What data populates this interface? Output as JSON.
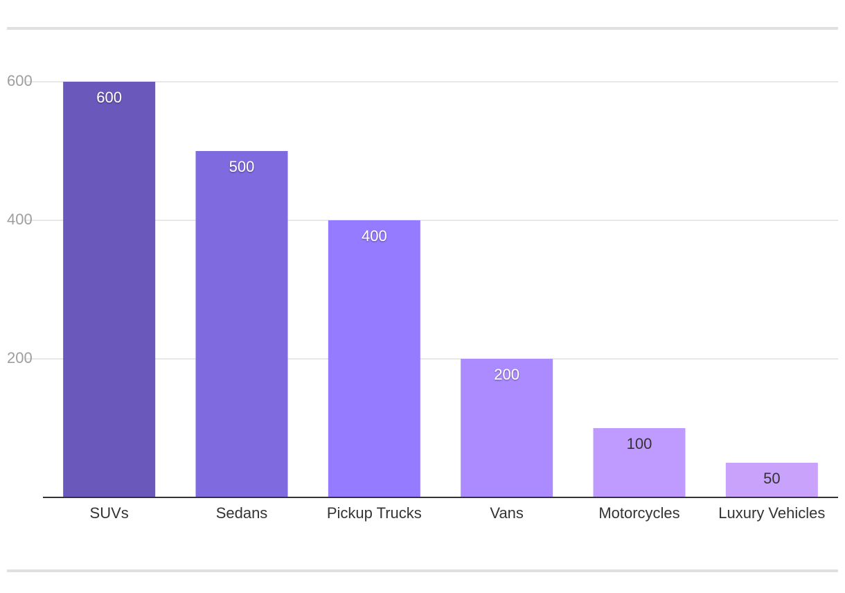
{
  "chart_data": {
    "type": "bar",
    "title": "",
    "xlabel": "",
    "ylabel": "",
    "categories": [
      "SUVs",
      "Sedans",
      "Pickup Trucks",
      "Vans",
      "Motorcycles",
      "Luxury Vehicles"
    ],
    "values": [
      600,
      500,
      400,
      200,
      100,
      50
    ],
    "data_labels": [
      "600",
      "500",
      "400",
      "200",
      "100",
      "50"
    ],
    "yticks": [
      200,
      400,
      600
    ],
    "ytick_labels": [
      "200",
      "400",
      "600"
    ],
    "ylim": [
      0,
      600
    ],
    "grid": true,
    "legend": "none",
    "bar_colors": [
      "#6a59ba",
      "#7f6adf",
      "#957bff",
      "#ab8bff",
      "#bf9bff",
      "#c9a2fb"
    ],
    "data_label_colors": [
      "#ffffff",
      "#ffffff",
      "#ffffff",
      "#ffffff",
      "#333333",
      "#333333"
    ],
    "gridline_color": "#e0e0e0",
    "axis_color": "#333333"
  }
}
